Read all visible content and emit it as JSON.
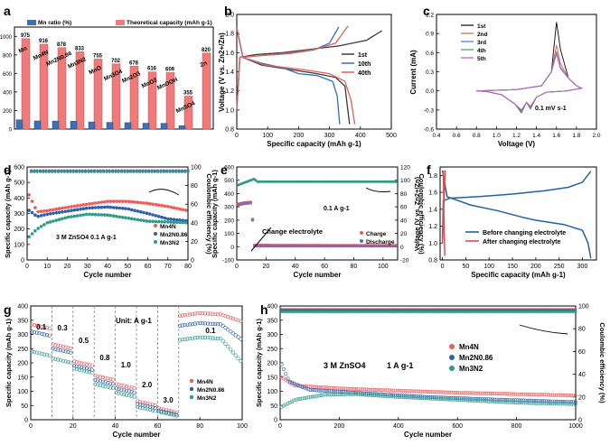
{
  "chart_data": [
    {
      "panel": "a",
      "type": "bar",
      "categories": [
        "Mn",
        "Mn4N",
        "Mn2N0.86",
        "Mn3N2",
        "MnO",
        "Mn3O4",
        "Mn2O3",
        "MnO2",
        "MnOOH",
        "MnSO4",
        "Zn"
      ],
      "series": [
        {
          "name": "Mn ratio (%)",
          "values": [
            100,
            88,
            87,
            84,
            77,
            72,
            69,
            63,
            62,
            36,
            null
          ]
        },
        {
          "name": "Theoretical capacity (mAh g-1)",
          "values": [
            975,
            916,
            878,
            833,
            755,
            702,
            678,
            616,
            609,
            355,
            820
          ]
        }
      ],
      "data_labels": [
        "975",
        "916",
        "878",
        "833",
        "755",
        "702",
        "678",
        "616",
        "609",
        "355",
        "820"
      ],
      "ylim": [
        0,
        1100
      ],
      "yticks": [
        0,
        200,
        400,
        600,
        800,
        1000
      ]
    },
    {
      "panel": "b",
      "type": "line",
      "xlabel": "Specific capacity (mAh g-1)",
      "ylabel": "Voltage  (V vs. Zn2+/Zn)",
      "xlim": [
        0,
        500
      ],
      "ylim": [
        0.8,
        2.0
      ],
      "xticks": [
        0,
        100,
        200,
        300,
        400,
        500
      ],
      "yticks": [
        "0.8",
        "1.0",
        "1.2",
        "1.4",
        "1.6",
        "1.8",
        "2.0"
      ],
      "series": [
        {
          "name": "1st",
          "charge": [
            [
              0,
              1.0
            ],
            [
              10,
              1.55
            ],
            [
              60,
              1.58
            ],
            [
              150,
              1.6
            ],
            [
              250,
              1.64
            ],
            [
              330,
              1.67
            ],
            [
              420,
              1.73
            ],
            [
              470,
              1.83
            ]
          ],
          "discharge": [
            [
              0,
              1.86
            ],
            [
              20,
              1.55
            ],
            [
              80,
              1.47
            ],
            [
              180,
              1.42
            ],
            [
              260,
              1.38
            ],
            [
              320,
              1.34
            ],
            [
              350,
              1.25
            ],
            [
              365,
              0.85
            ]
          ]
        },
        {
          "name": "10th",
          "charge": [
            [
              0,
              1.0
            ],
            [
              10,
              1.55
            ],
            [
              80,
              1.57
            ],
            [
              170,
              1.59
            ],
            [
              250,
              1.63
            ],
            [
              300,
              1.7
            ],
            [
              330,
              1.87
            ]
          ],
          "discharge": [
            [
              0,
              1.86
            ],
            [
              20,
              1.55
            ],
            [
              80,
              1.49
            ],
            [
              150,
              1.44
            ],
            [
              200,
              1.38
            ],
            [
              260,
              1.36
            ],
            [
              310,
              1.3
            ],
            [
              325,
              1.15
            ],
            [
              333,
              0.85
            ]
          ]
        },
        {
          "name": "40th",
          "charge": [
            [
              0,
              1.0
            ],
            [
              10,
              1.55
            ],
            [
              80,
              1.57
            ],
            [
              180,
              1.6
            ],
            [
              260,
              1.64
            ],
            [
              320,
              1.7
            ],
            [
              360,
              1.88
            ]
          ],
          "discharge": [
            [
              0,
              1.86
            ],
            [
              20,
              1.55
            ],
            [
              90,
              1.47
            ],
            [
              170,
              1.44
            ],
            [
              220,
              1.42
            ],
            [
              300,
              1.38
            ],
            [
              350,
              1.3
            ],
            [
              370,
              1.1
            ],
            [
              382,
              0.85
            ]
          ]
        }
      ]
    },
    {
      "panel": "c",
      "type": "line",
      "xlabel": "Voltage (V)",
      "ylabel": "Current (mA)",
      "annotation": "0.1 mV s-1",
      "xlim": [
        0.4,
        2.0
      ],
      "ylim": [
        -0.6,
        1.2
      ],
      "xticks": [
        "0.4",
        "0.6",
        "0.8",
        "1.0",
        "1.2",
        "1.4",
        "1.6",
        "1.8",
        "2.0"
      ],
      "yticks": [
        "-0.6",
        "-0.3",
        "0.0",
        "0.3",
        "0.6",
        "0.9",
        "1.2"
      ],
      "series": [
        {
          "name": "1st",
          "color": "#1a1a1a",
          "peak": 1.08
        },
        {
          "name": "2nd",
          "color": "#e8665e",
          "peak": 0.72
        },
        {
          "name": "3rd",
          "color": "#5b7fd8",
          "peak": 0.62
        },
        {
          "name": "4th",
          "color": "#3cab5a",
          "peak": 0.6
        },
        {
          "name": "5th",
          "color": "#c064c8",
          "peak": 0.58
        }
      ]
    },
    {
      "panel": "d",
      "type": "scatter",
      "xlabel": "Cycle number",
      "ylabel": "Specific capacity (mAh g-1)",
      "y2label": "Coulombic efficiency (%)",
      "xlim": [
        0,
        80
      ],
      "ylim": [
        0,
        600
      ],
      "y2lim": [
        0,
        100
      ],
      "xticks": [
        0,
        10,
        20,
        30,
        40,
        50,
        60,
        70,
        80
      ],
      "yticks": [
        0,
        100,
        200,
        300,
        400,
        500,
        600
      ],
      "y2ticks": [
        0,
        20,
        40,
        60,
        80,
        100
      ],
      "annotation": "3 M ZnSO4    0.1 A g-1",
      "series": [
        {
          "name": "Mn4N",
          "color": "#ef5b5b",
          "points": [
            [
              1,
              420
            ],
            [
              5,
              310
            ],
            [
              10,
              318
            ],
            [
              20,
              340
            ],
            [
              30,
              360
            ],
            [
              40,
              378
            ],
            [
              50,
              378
            ],
            [
              60,
              365
            ],
            [
              70,
              345
            ],
            [
              80,
              318
            ]
          ]
        },
        {
          "name": "Mn2N0.86",
          "color": "#2f5fae",
          "points": [
            [
              1,
              320
            ],
            [
              5,
              280
            ],
            [
              10,
              295
            ],
            [
              20,
              315
            ],
            [
              30,
              335
            ],
            [
              40,
              342
            ],
            [
              50,
              330
            ],
            [
              60,
              300
            ],
            [
              70,
              265
            ],
            [
              80,
              252
            ]
          ]
        },
        {
          "name": "Mn3N2",
          "color": "#2e9b88",
          "points": [
            [
              1,
              150
            ],
            [
              5,
              200
            ],
            [
              10,
              240
            ],
            [
              20,
              275
            ],
            [
              30,
              295
            ],
            [
              40,
              290
            ],
            [
              50,
              270
            ],
            [
              60,
              250
            ],
            [
              70,
              245
            ],
            [
              80,
              240
            ]
          ]
        }
      ],
      "coulombic_efficiency": 96
    },
    {
      "panel": "e",
      "type": "scatter",
      "xlabel": "Cycle number",
      "ylabel": "Specific capacity (mAh g-1)",
      "y2label": "Coulombic efficiency (%)",
      "xlim": [
        0,
        110
      ],
      "ylim": [
        -100,
        600
      ],
      "y2lim": [
        -20,
        120
      ],
      "xticks": [
        0,
        20,
        40,
        60,
        80,
        100
      ],
      "yticks": [
        -100,
        0,
        100,
        200,
        300,
        400,
        500,
        600
      ],
      "y2ticks": [
        -20,
        0,
        20,
        40,
        60,
        80,
        100,
        120
      ],
      "annotations": [
        "Change electrolyte",
        "0.1 A g-1"
      ],
      "series": [
        {
          "name": "Charge",
          "color": "#ef5b5b",
          "points": [
            [
              1,
              320
            ],
            [
              5,
              330
            ],
            [
              10,
              335
            ],
            [
              12,
              10
            ],
            [
              110,
              8
            ]
          ]
        },
        {
          "name": "Discharge",
          "color": "#4f6fd0",
          "points": [
            [
              1,
              315
            ],
            [
              5,
              325
            ],
            [
              10,
              330
            ],
            [
              12,
              6
            ],
            [
              110,
              5
            ]
          ]
        }
      ],
      "coulombic_efficiency": 98
    },
    {
      "panel": "f",
      "type": "line",
      "xlabel": "Specific capacity (mAh g-1)",
      "ylabel": "Voltage  (V vs. Zn2+/Zn)",
      "xlim": [
        -5,
        330
      ],
      "ylim": [
        0.8,
        1.9
      ],
      "xticks": [
        0,
        50,
        100,
        150,
        200,
        250,
        300
      ],
      "yticks": [
        "0.8",
        "1.0",
        "1.2",
        "1.4",
        "1.6",
        "1.8"
      ],
      "series": [
        {
          "name": "Before changing electrolyte",
          "color": "#2261a8"
        },
        {
          "name": "After changing electrolyte",
          "color": "#e24a4a"
        }
      ]
    },
    {
      "panel": "g",
      "type": "scatter",
      "xlabel": "Cycle number",
      "ylabel": "Specific capacity (mAh g-1)",
      "annotation": "Unit: A g-1",
      "xlim": [
        0,
        100
      ],
      "ylim": [
        0,
        400
      ],
      "xticks": [
        0,
        20,
        40,
        60,
        80,
        100
      ],
      "yticks": [
        0,
        50,
        100,
        150,
        200,
        250,
        300,
        350,
        400
      ],
      "rates": [
        "0.1",
        "0.3",
        "0.5",
        "0.8",
        "1.0",
        "2.0",
        "3.0",
        "0.1"
      ],
      "series": [
        {
          "name": "Mn4N",
          "color": "#ef5b5b",
          "segments": [
            325,
            255,
            195,
            145,
            115,
            55,
            30,
            365
          ]
        },
        {
          "name": "Mn2N0.86",
          "color": "#2f5fae",
          "segments": [
            300,
            240,
            180,
            130,
            100,
            45,
            22,
            330
          ]
        },
        {
          "name": "Mn3N2",
          "color": "#2e9b88",
          "segments": [
            230,
            205,
            170,
            115,
            85,
            35,
            18,
            280
          ]
        }
      ]
    },
    {
      "panel": "h",
      "type": "scatter",
      "xlabel": "Cycle number",
      "ylabel": "Specific capacity (mAh g-1)",
      "y2label": "Coulombic efficiency (%)",
      "xlim": [
        0,
        1000
      ],
      "ylim": [
        0,
        400
      ],
      "y2lim": [
        0,
        100
      ],
      "xticks": [
        0,
        200,
        400,
        600,
        800,
        1000
      ],
      "yticks": [
        0,
        50,
        100,
        150,
        200,
        250,
        300,
        350,
        400
      ],
      "y2ticks": [
        0,
        20,
        40,
        60,
        80,
        100
      ],
      "annotations": [
        "3 M ZnSO4",
        "1 A g-1"
      ],
      "series": [
        {
          "name": "Mn4N",
          "color": "#ef5b5b",
          "points": [
            [
              5,
              150
            ],
            [
              50,
              120
            ],
            [
              200,
              110
            ],
            [
              400,
              102
            ],
            [
              600,
              95
            ],
            [
              800,
              90
            ],
            [
              1000,
              85
            ]
          ]
        },
        {
          "name": "Mn2N0.86",
          "color": "#2f5fae",
          "points": [
            [
              5,
              195
            ],
            [
              30,
              135
            ],
            [
              100,
              105
            ],
            [
              300,
              92
            ],
            [
              500,
              80
            ],
            [
              700,
              72
            ],
            [
              1000,
              62
            ]
          ]
        },
        {
          "name": "Mn3N2",
          "color": "#2e9b88",
          "points": [
            [
              5,
              45
            ],
            [
              50,
              70
            ],
            [
              150,
              88
            ],
            [
              250,
              90
            ],
            [
              400,
              80
            ],
            [
              600,
              70
            ],
            [
              800,
              60
            ],
            [
              1000,
              55
            ]
          ]
        }
      ],
      "coulombic_efficiency": 97
    }
  ],
  "labels": {
    "a": "a",
    "b": "b",
    "c": "c",
    "d": "d",
    "e": "e",
    "f": "f",
    "g": "g",
    "h": "h"
  }
}
